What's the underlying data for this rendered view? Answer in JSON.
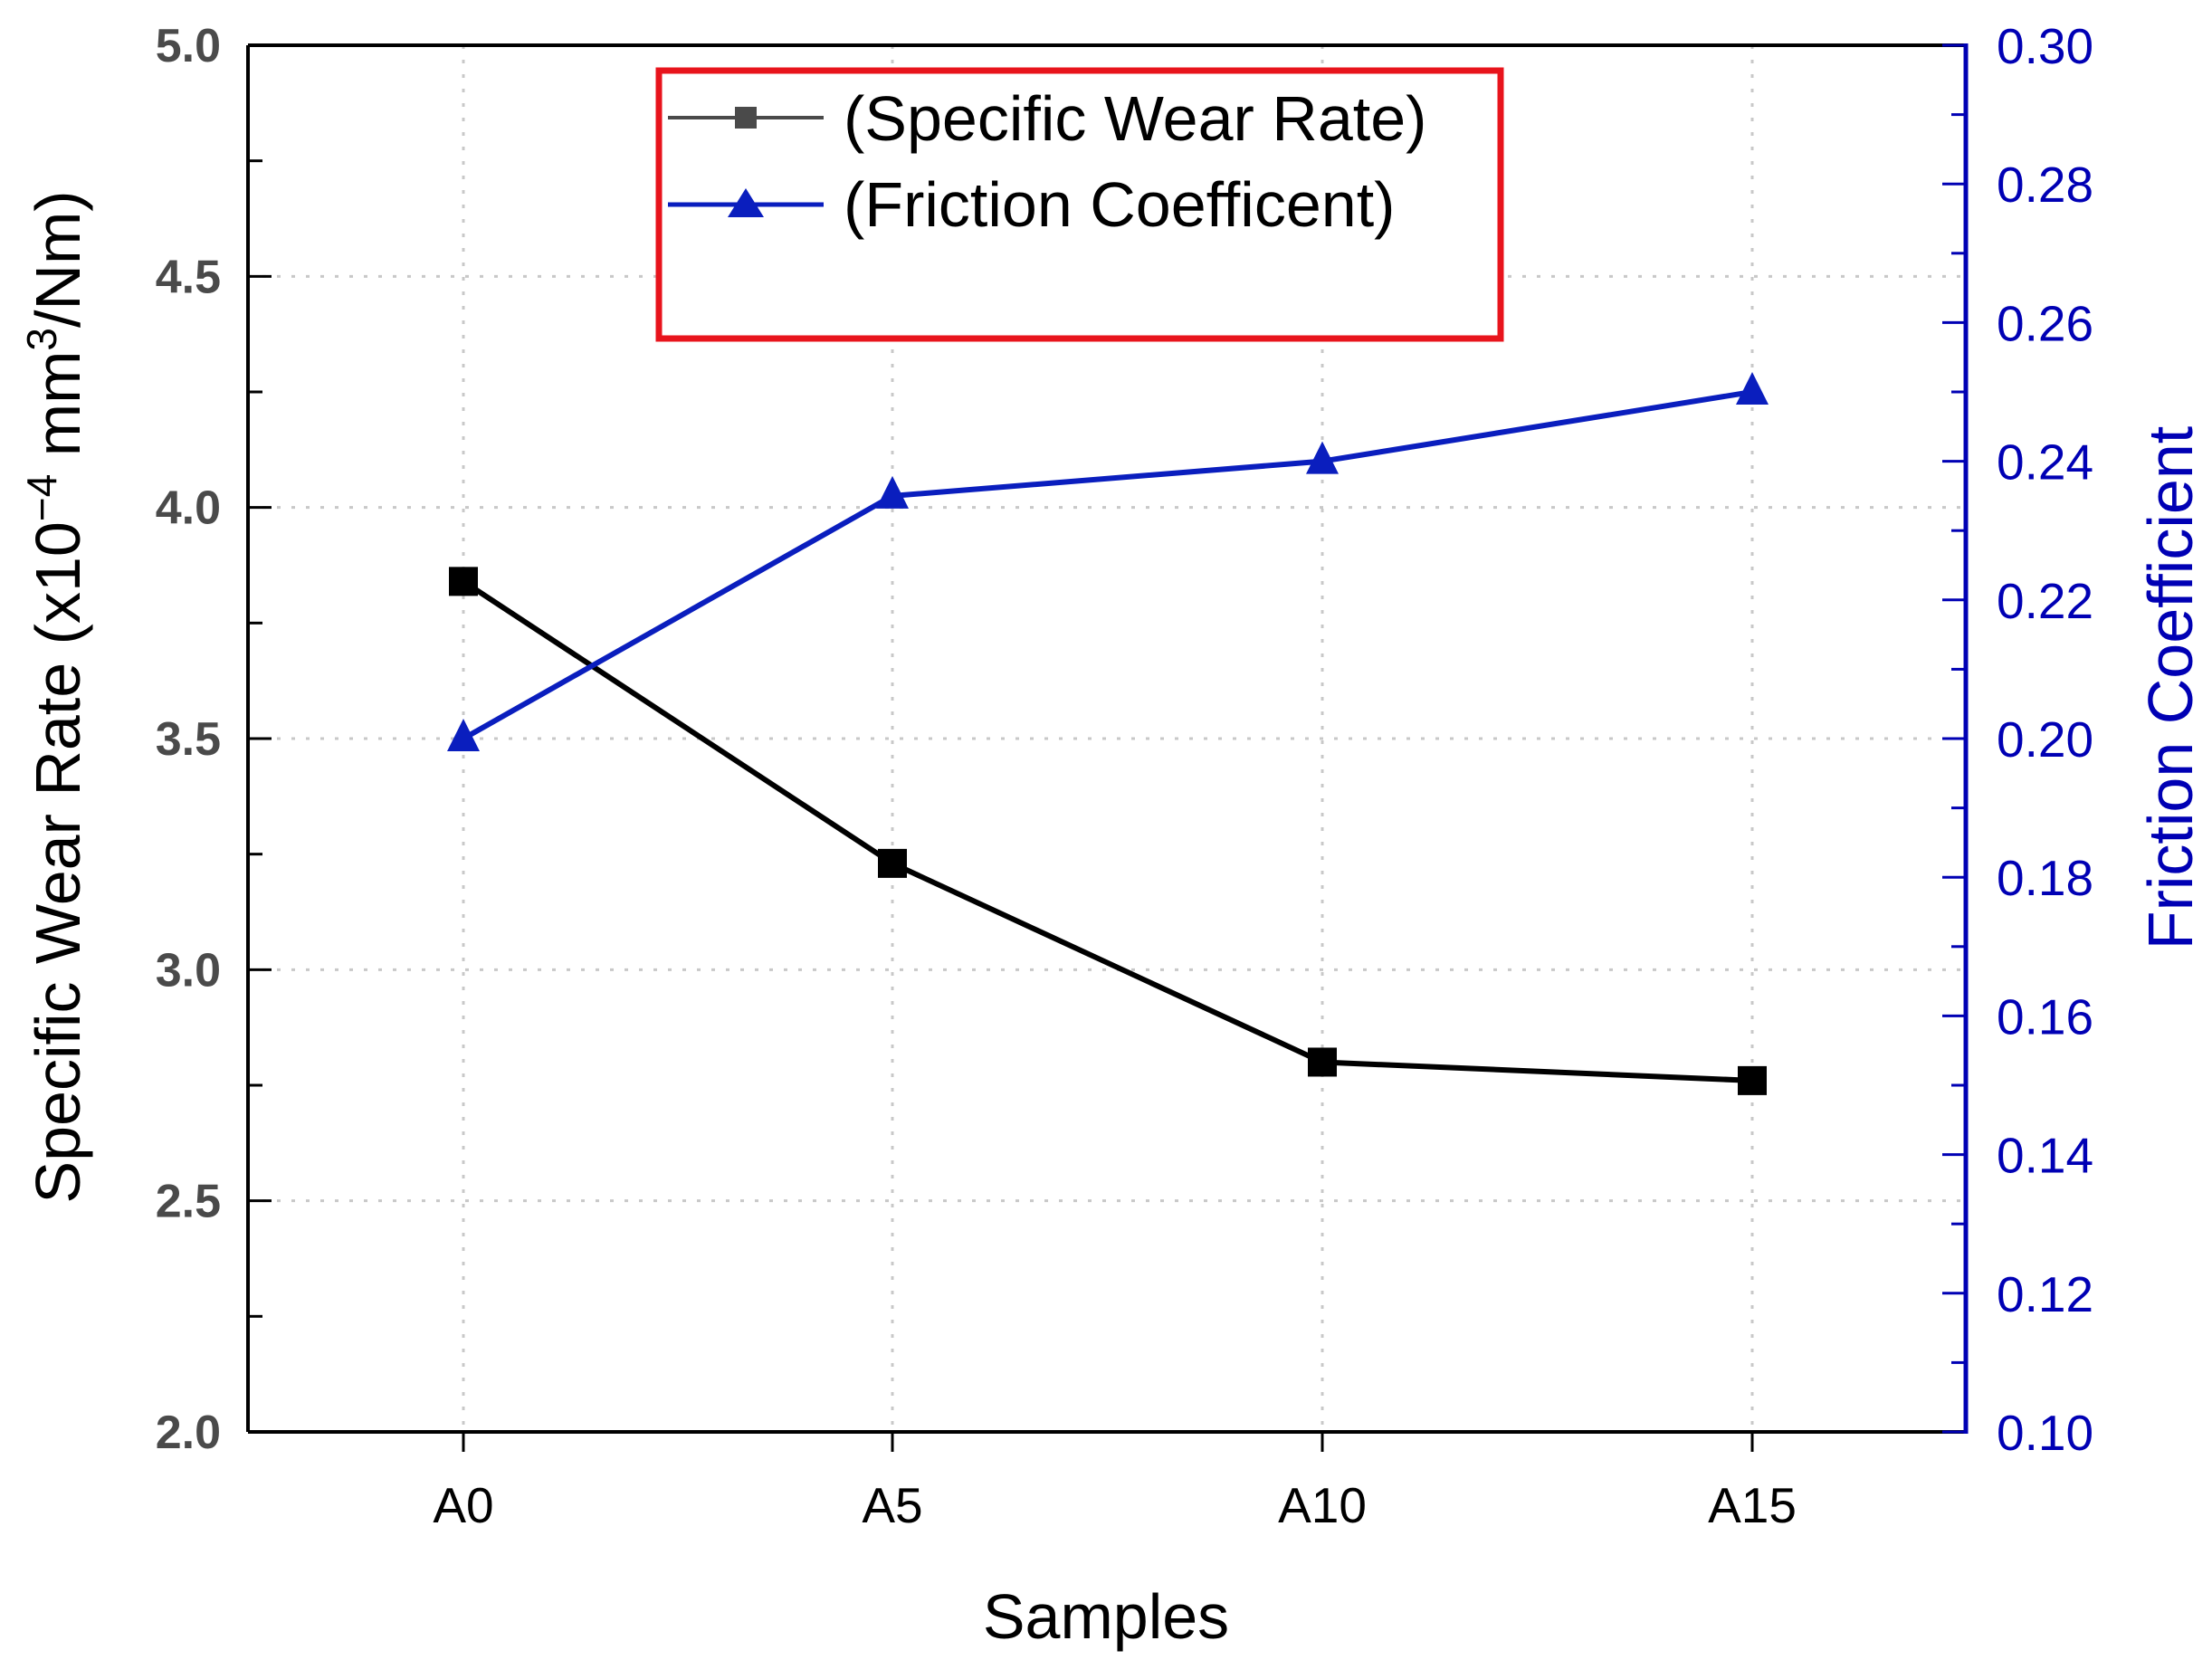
{
  "chart_data": {
    "type": "line",
    "categories": [
      "A0",
      "A5",
      "A10",
      "A15"
    ],
    "xlabel": "Samples",
    "ylabel_left": {
      "prefix": "Specific Wear Rate (x10",
      "exp1": "−4",
      "mid": " mm",
      "exp2": "3",
      "suffix": "/Nm)"
    },
    "ylabel_right": "Friction Coefficient",
    "yticks_left": [
      "2.0",
      "2.5",
      "3.0",
      "3.5",
      "4.0",
      "4.5",
      "5.0"
    ],
    "yticks_right": [
      "0.10",
      "0.12",
      "0.14",
      "0.16",
      "0.18",
      "0.20",
      "0.22",
      "0.24",
      "0.26",
      "0.28",
      "0.30"
    ],
    "ylim_left": [
      2.0,
      5.0
    ],
    "ylim_right": [
      0.1,
      0.3
    ],
    "grid": true,
    "legend_position": "top-center",
    "legend_border_color": "#e8141c",
    "series": [
      {
        "name": "(Specific Wear Rate)",
        "axis": "left",
        "marker": "square",
        "color": "#000000",
        "legend_color": "#4a4a4a",
        "values": [
          3.84,
          3.23,
          2.8,
          2.76
        ]
      },
      {
        "name": "(Friction Coefficent)",
        "axis": "right",
        "marker": "triangle",
        "color": "#0a1ebe",
        "values": [
          0.2,
          0.235,
          0.24,
          0.25
        ]
      }
    ]
  }
}
